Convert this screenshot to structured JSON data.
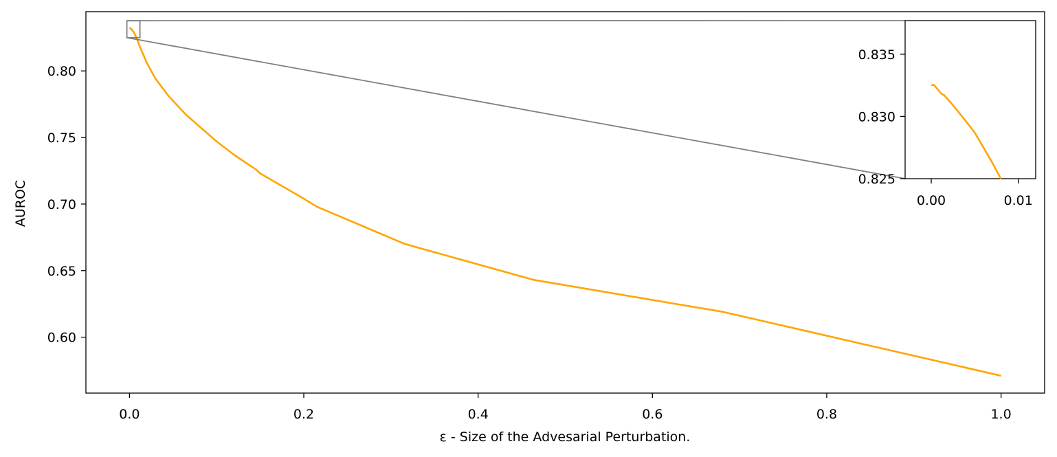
{
  "chart_data": {
    "type": "line",
    "xlabel": "ε - Size of the Advesarial Perturbation.",
    "ylabel": "AUROC",
    "xlim": [
      -0.05,
      1.05
    ],
    "ylim": [
      0.558,
      0.8445
    ],
    "xticks": [
      "0.0",
      "0.2",
      "0.4",
      "0.6",
      "0.8",
      "1.0"
    ],
    "yticks": [
      "0.60",
      "0.65",
      "0.70",
      "0.75",
      "0.80"
    ],
    "line_color": "#ffa500",
    "series": [
      {
        "x": [
          0.0,
          0.001,
          0.002,
          0.005,
          0.008,
          0.012,
          0.02,
          0.03,
          0.045,
          0.065,
          0.1,
          0.12,
          0.145,
          0.15,
          0.2,
          0.215,
          0.316,
          0.464,
          0.681,
          1.0
        ],
        "y": [
          0.8325,
          0.832,
          0.8315,
          0.829,
          0.825,
          0.818,
          0.806,
          0.794,
          0.781,
          0.767,
          0.747,
          0.737,
          0.726,
          0.723,
          0.704,
          0.698,
          0.67,
          0.643,
          0.619,
          0.571
        ]
      }
    ],
    "inset": {
      "xlim": [
        -0.003,
        0.012
      ],
      "ylim": [
        0.825,
        0.8377
      ],
      "xticks": [
        "0.00",
        "0.01"
      ],
      "yticks": [
        "0.825",
        "0.830",
        "0.835"
      ],
      "series": [
        {
          "x": [
            0.0,
            0.0003,
            0.0006,
            0.0012,
            0.0015,
            0.0025,
            0.004,
            0.005,
            0.006,
            0.007,
            0.008
          ],
          "y": [
            0.8325,
            0.83255,
            0.8323,
            0.8318,
            0.8317,
            0.8309,
            0.8296,
            0.8287,
            0.8275,
            0.8263,
            0.825
          ]
        }
      ]
    }
  }
}
